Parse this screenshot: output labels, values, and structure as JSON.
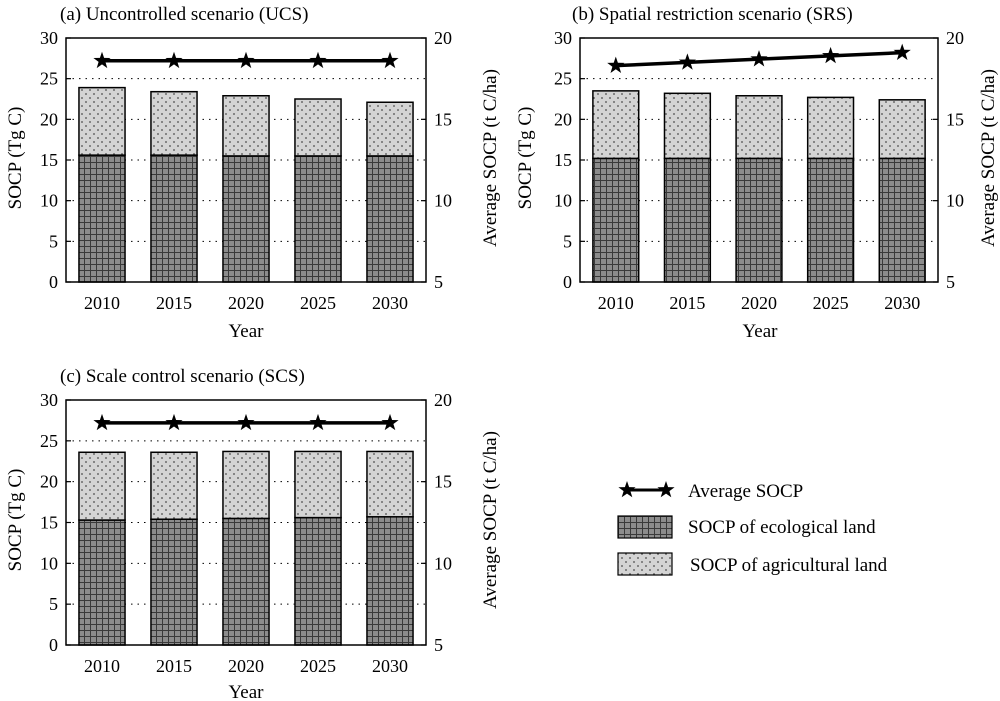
{
  "chart_data": [
    {
      "type": "bar",
      "title": "(a) Uncontrolled scenario (UCS)",
      "xlabel": "Year",
      "ylabel": "SOCP (Tg C)",
      "y2label": "Average SOCP (t C/ha)",
      "categories": [
        "2010",
        "2015",
        "2020",
        "2025",
        "2030"
      ],
      "ylim": [
        0,
        30
      ],
      "yticks": [
        "0",
        "5",
        "10",
        "15",
        "20",
        "25",
        "30"
      ],
      "y2lim": [
        5,
        20
      ],
      "y2ticks": [
        "5",
        "10",
        "15",
        "20"
      ],
      "grid": "dotted horizontal",
      "stacked": true,
      "series": [
        {
          "name": "SOCP of ecological land",
          "kind": "bar",
          "axis": "left",
          "values": [
            15.6,
            15.6,
            15.5,
            15.5,
            15.5
          ]
        },
        {
          "name": "SOCP of agricultural land",
          "kind": "bar",
          "axis": "left",
          "values": [
            8.3,
            7.8,
            7.4,
            7.0,
            6.6
          ]
        },
        {
          "name": "Average SOCP",
          "kind": "line",
          "axis": "right",
          "values": [
            18.6,
            18.6,
            18.6,
            18.6,
            18.6
          ]
        }
      ]
    },
    {
      "type": "bar",
      "title": "(b) Spatial restriction scenario (SRS)",
      "xlabel": "Year",
      "ylabel": "SOCP (Tg C)",
      "y2label": "Average SOCP (t C/ha)",
      "categories": [
        "2010",
        "2015",
        "2020",
        "2025",
        "2030"
      ],
      "ylim": [
        0,
        30
      ],
      "yticks": [
        "0",
        "5",
        "10",
        "15",
        "20",
        "25",
        "30"
      ],
      "y2lim": [
        5,
        20
      ],
      "y2ticks": [
        "5",
        "10",
        "15",
        "20"
      ],
      "grid": "dotted horizontal",
      "stacked": true,
      "series": [
        {
          "name": "SOCP of ecological land",
          "kind": "bar",
          "axis": "left",
          "values": [
            15.2,
            15.2,
            15.2,
            15.2,
            15.2
          ]
        },
        {
          "name": "SOCP of agricultural land",
          "kind": "bar",
          "axis": "left",
          "values": [
            8.3,
            8.0,
            7.7,
            7.5,
            7.2
          ]
        },
        {
          "name": "Average SOCP",
          "kind": "line",
          "axis": "right",
          "values": [
            18.3,
            18.5,
            18.7,
            18.9,
            19.1
          ]
        }
      ]
    },
    {
      "type": "bar",
      "title": "(c) Scale control scenario (SCS)",
      "xlabel": "Year",
      "ylabel": "SOCP (Tg C)",
      "y2label": "Average SOCP (t C/ha)",
      "categories": [
        "2010",
        "2015",
        "2020",
        "2025",
        "2030"
      ],
      "ylim": [
        0,
        30
      ],
      "yticks": [
        "0",
        "5",
        "10",
        "15",
        "20",
        "25",
        "30"
      ],
      "y2lim": [
        5,
        20
      ],
      "y2ticks": [
        "5",
        "10",
        "15",
        "20"
      ],
      "grid": "dotted horizontal",
      "stacked": true,
      "series": [
        {
          "name": "SOCP of ecological land",
          "kind": "bar",
          "axis": "left",
          "values": [
            15.3,
            15.4,
            15.5,
            15.6,
            15.7
          ]
        },
        {
          "name": "SOCP of agricultural land",
          "kind": "bar",
          "axis": "left",
          "values": [
            8.3,
            8.2,
            8.2,
            8.1,
            8.0
          ]
        },
        {
          "name": "Average SOCP",
          "kind": "line",
          "axis": "right",
          "values": [
            18.6,
            18.6,
            18.6,
            18.6,
            18.6
          ]
        }
      ]
    }
  ],
  "legend": {
    "position": "lower-right",
    "items": [
      {
        "label": "Average SOCP",
        "kind": "line-star"
      },
      {
        "label": "SOCP of ecological land",
        "kind": "grid-fill"
      },
      {
        "label": "SOCP of agricultural land",
        "kind": "dot-fill"
      }
    ]
  },
  "colors": {
    "ecological_fill": "#8c8c8c",
    "agricultural_fill": "#d4d4d4",
    "line": "#000000"
  }
}
